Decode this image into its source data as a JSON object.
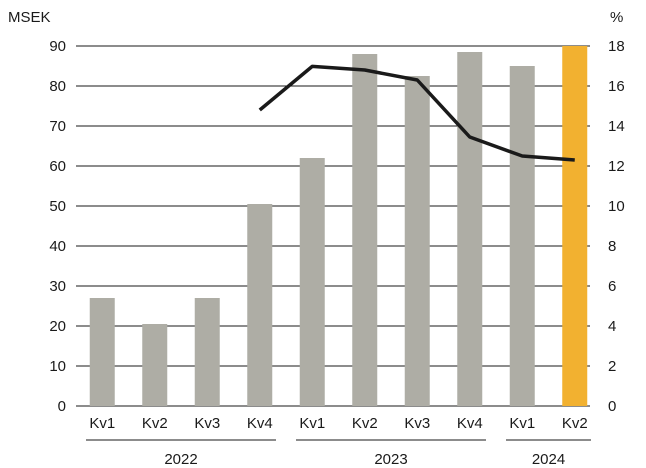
{
  "chart_data": {
    "type": "bar",
    "categories": [
      "Kv1",
      "Kv2",
      "Kv3",
      "Kv4",
      "Kv1",
      "Kv2",
      "Kv3",
      "Kv4",
      "Kv1",
      "Kv2"
    ],
    "groups": [
      {
        "label": "2022",
        "start": 0,
        "end": 3
      },
      {
        "label": "2023",
        "start": 4,
        "end": 7
      },
      {
        "label": "2024",
        "start": 8,
        "end": 9
      }
    ],
    "series": [
      {
        "type": "bar",
        "axis": "left",
        "values": [
          27,
          20.5,
          27,
          50.5,
          62,
          88,
          82.5,
          88.5,
          85,
          90
        ],
        "color": "#aeada5",
        "highlight_color": "#f2b130",
        "highlight_index": 9
      },
      {
        "type": "line",
        "axis": "right",
        "values": [
          null,
          null,
          null,
          14.8,
          16.98,
          16.8,
          16.3,
          13.45,
          12.5,
          12.3
        ],
        "color": "#1a1a1a"
      }
    ],
    "y_left": {
      "label": "MSEK",
      "min": 0,
      "max": 90,
      "ticks": [
        0,
        10,
        20,
        30,
        40,
        50,
        60,
        70,
        80,
        90
      ]
    },
    "y_right": {
      "label": "%",
      "min": 0,
      "max": 18,
      "ticks": [
        0,
        2,
        4,
        6,
        8,
        10,
        12,
        14,
        16,
        18
      ]
    },
    "grid": true,
    "title": ""
  }
}
